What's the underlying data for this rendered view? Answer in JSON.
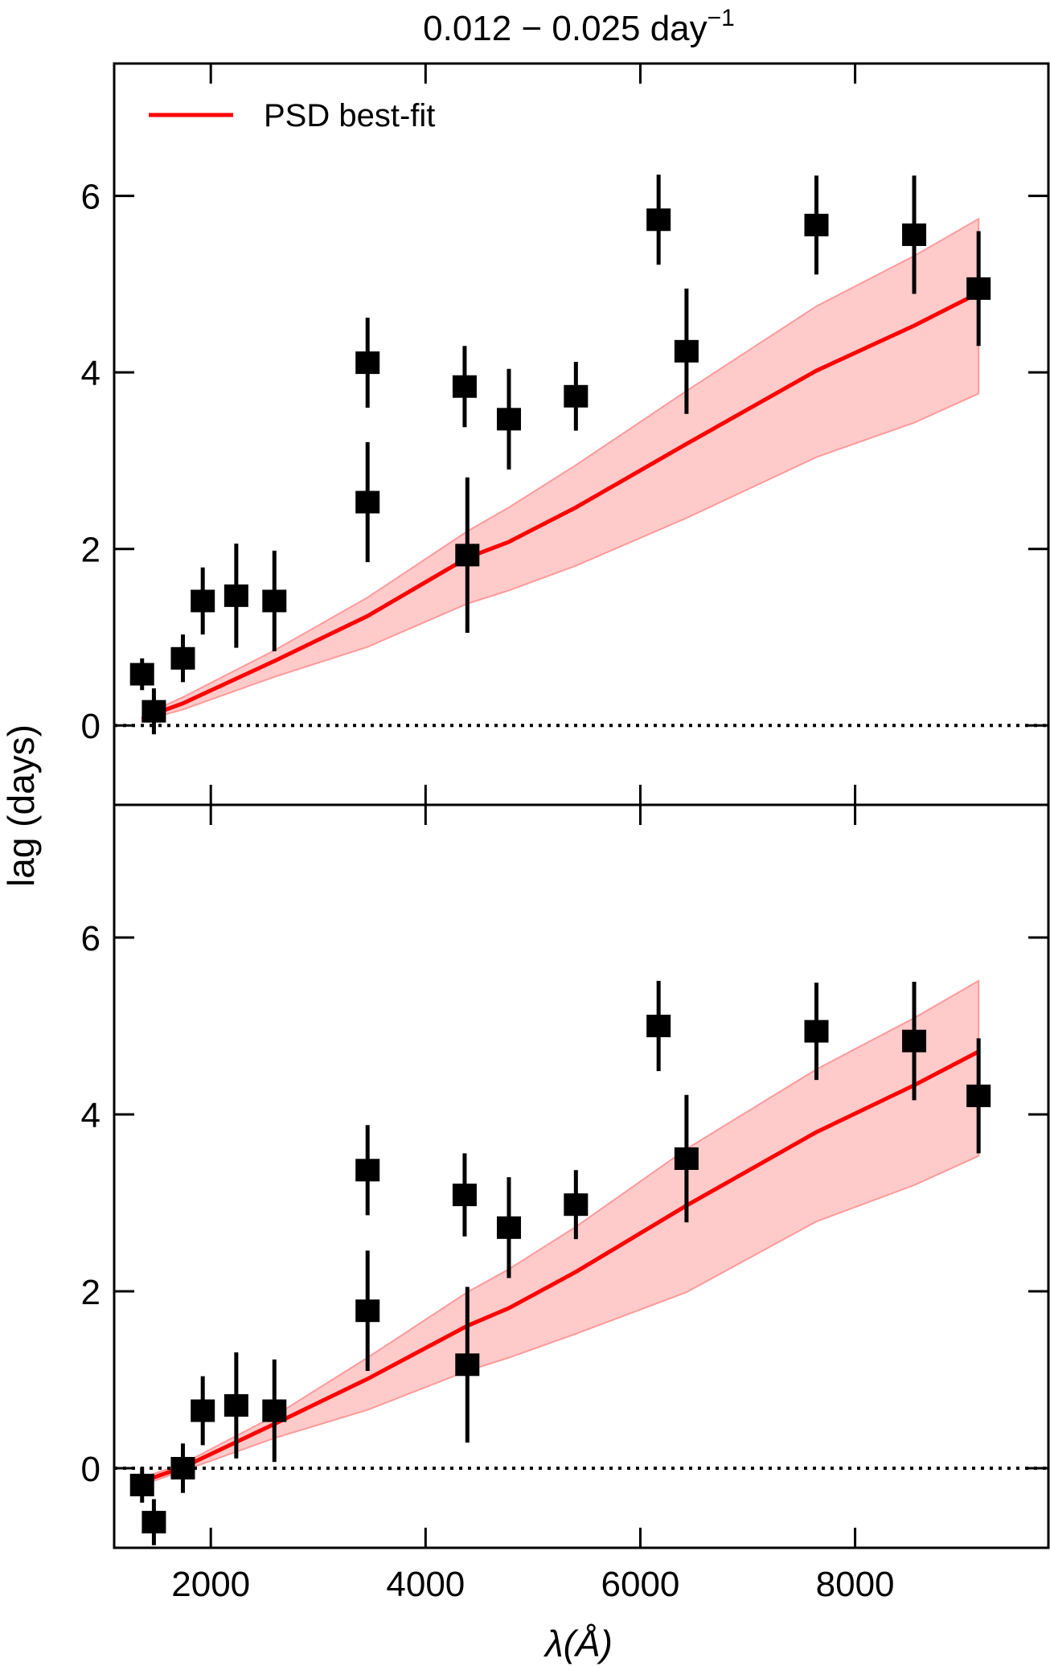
{
  "chart_data": {
    "type": "scatter",
    "title": "0.012 − 0.025 day",
    "title_superscript": "−1",
    "xlabel": "λ(Å)",
    "ylabel": "lag (days)",
    "xlim": [
      1100,
      9800
    ],
    "ylim": [
      -0.9,
      7.5
    ],
    "xticks": [
      2000,
      4000,
      6000,
      8000
    ],
    "yticks": [
      0,
      2,
      4,
      6
    ],
    "legend": {
      "label": "PSD best-fit",
      "placement": "top-left"
    },
    "colors": {
      "model": "#ff0000",
      "band": "#ffb3b3",
      "points": "#000000"
    },
    "panels": [
      {
        "name": "top",
        "points": [
          {
            "x": 1360,
            "y": 0.58,
            "err": 0.18
          },
          {
            "x": 1470,
            "y": 0.16,
            "err": 0.26
          },
          {
            "x": 1740,
            "y": 0.76,
            "err": 0.27
          },
          {
            "x": 1925,
            "y": 1.41,
            "err": 0.38
          },
          {
            "x": 2237,
            "y": 1.47,
            "err": 0.59
          },
          {
            "x": 2592,
            "y": 1.41,
            "err": 0.57
          },
          {
            "x": 3460,
            "y": 4.11,
            "err": 0.51
          },
          {
            "x": 3460,
            "y": 2.53,
            "err": 0.68
          },
          {
            "x": 4364,
            "y": 3.84,
            "err": 0.46
          },
          {
            "x": 4389,
            "y": 1.93,
            "err": 0.88
          },
          {
            "x": 4776,
            "y": 3.47,
            "err": 0.57
          },
          {
            "x": 5400,
            "y": 3.73,
            "err": 0.39
          },
          {
            "x": 6170,
            "y": 5.73,
            "err": 0.51
          },
          {
            "x": 6430,
            "y": 4.24,
            "err": 0.71
          },
          {
            "x": 7640,
            "y": 5.67,
            "err": 0.56
          },
          {
            "x": 8550,
            "y": 5.56,
            "err": 0.67
          },
          {
            "x": 9150,
            "y": 4.95,
            "err": 0.65
          }
        ],
        "model": {
          "x": [
            1360,
            1470,
            1740,
            2592,
            3460,
            4389,
            4776,
            5400,
            6430,
            7640,
            8550,
            9150
          ],
          "y": [
            0.07,
            0.13,
            0.25,
            0.73,
            1.24,
            1.9,
            2.08,
            2.47,
            3.19,
            4.02,
            4.53,
            4.9
          ],
          "upper": [
            0.1,
            0.17,
            0.32,
            0.85,
            1.45,
            2.2,
            2.47,
            2.95,
            3.79,
            4.75,
            5.32,
            5.74
          ],
          "lower": [
            0.04,
            0.09,
            0.18,
            0.55,
            0.89,
            1.38,
            1.53,
            1.81,
            2.35,
            3.04,
            3.43,
            3.76
          ]
        }
      },
      {
        "name": "bottom",
        "points": [
          {
            "x": 1360,
            "y": -0.19,
            "err": 0.2
          },
          {
            "x": 1470,
            "y": -0.61,
            "err": 0.26
          },
          {
            "x": 1740,
            "y": 0.0,
            "err": 0.28
          },
          {
            "x": 1925,
            "y": 0.65,
            "err": 0.39
          },
          {
            "x": 2237,
            "y": 0.71,
            "err": 0.6
          },
          {
            "x": 2592,
            "y": 0.65,
            "err": 0.58
          },
          {
            "x": 3460,
            "y": 3.37,
            "err": 0.51
          },
          {
            "x": 3460,
            "y": 1.78,
            "err": 0.68
          },
          {
            "x": 4364,
            "y": 3.09,
            "err": 0.47
          },
          {
            "x": 4389,
            "y": 1.17,
            "err": 0.88
          },
          {
            "x": 4776,
            "y": 2.72,
            "err": 0.57
          },
          {
            "x": 5400,
            "y": 2.98,
            "err": 0.39
          },
          {
            "x": 6170,
            "y": 5.0,
            "err": 0.51
          },
          {
            "x": 6430,
            "y": 3.5,
            "err": 0.72
          },
          {
            "x": 7640,
            "y": 4.94,
            "err": 0.55
          },
          {
            "x": 8550,
            "y": 4.83,
            "err": 0.67
          },
          {
            "x": 9150,
            "y": 4.21,
            "err": 0.65
          }
        ],
        "model": {
          "x": [
            1360,
            1740,
            2592,
            3460,
            4389,
            4776,
            5400,
            6430,
            7640,
            8550,
            9150
          ],
          "y": [
            -0.15,
            0.01,
            0.5,
            1.01,
            1.61,
            1.81,
            2.22,
            2.97,
            3.8,
            4.33,
            4.71
          ],
          "upper": [
            -0.11,
            0.05,
            0.59,
            1.25,
            1.99,
            2.25,
            2.73,
            3.61,
            4.51,
            5.09,
            5.51
          ],
          "lower": [
            -0.19,
            -0.03,
            0.34,
            0.66,
            1.1,
            1.25,
            1.52,
            1.99,
            2.79,
            3.2,
            3.53
          ]
        }
      }
    ]
  }
}
